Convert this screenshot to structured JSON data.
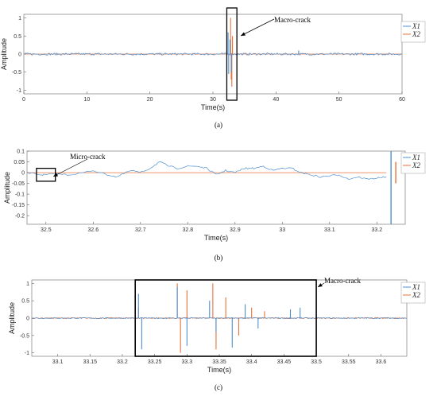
{
  "colors": {
    "x1": "#4d8fd0",
    "x2": "#e8703a",
    "axis": "#666666",
    "box": "#000000"
  },
  "chart_data": [
    {
      "type": "line",
      "panel_label": "(a)",
      "xlabel": "Time(s)",
      "ylabel": "Amplitude",
      "xlim": [
        0,
        60
      ],
      "ylim": [
        -1.1,
        1.1
      ],
      "xticks": [
        0,
        10,
        20,
        30,
        40,
        50,
        60
      ],
      "yticks": [
        -1,
        -0.5,
        0,
        0.5,
        1
      ],
      "legend": [
        "X1",
        "X2"
      ],
      "legend_position": "top-right",
      "series": [
        {
          "name": "X1",
          "noise": 0.03,
          "spikes": [
            [
              32.4,
              0.6
            ],
            [
              32.5,
              -0.55
            ],
            [
              32.7,
              0.4
            ],
            [
              32.9,
              -0.5
            ],
            [
              43.6,
              0.1
            ]
          ]
        },
        {
          "name": "X2",
          "noise": 0.0,
          "spikes": [
            [
              32.8,
              1.0
            ],
            [
              32.9,
              -0.7
            ],
            [
              33.0,
              -0.9
            ],
            [
              33.1,
              0.5
            ]
          ]
        }
      ],
      "annotations": [
        {
          "text": "Macro-crack",
          "xrange": [
            32.2,
            33.8
          ]
        }
      ]
    },
    {
      "type": "line",
      "panel_label": "(b)",
      "xlabel": "Time(s)",
      "ylabel": "Amplitude",
      "xlim": [
        32.46,
        33.26
      ],
      "ylim": [
        -0.24,
        0.1
      ],
      "xticks": [
        32.5,
        32.6,
        32.7,
        32.8,
        32.9,
        33,
        33.1,
        33.2
      ],
      "yticks": [
        -0.2,
        -0.15,
        -0.1,
        -0.05,
        0,
        0.05,
        0.1
      ],
      "legend": [
        "X1",
        "X2"
      ],
      "legend_position": "top-right",
      "series": [
        {
          "name": "X1",
          "x": [
            32.46,
            32.49,
            32.5,
            32.52,
            32.55,
            32.58,
            32.6,
            32.63,
            32.65,
            32.68,
            32.7,
            32.72,
            32.74,
            32.76,
            32.78,
            32.8,
            32.82,
            32.84,
            32.86,
            32.88,
            32.9,
            32.92,
            32.94,
            32.96,
            32.98,
            33.0,
            33.02,
            33.04,
            33.06,
            33.08,
            33.1,
            33.12,
            33.14,
            33.16,
            33.18,
            33.2,
            33.22
          ],
          "y": [
            0.0,
            -0.01,
            -0.01,
            -0.005,
            -0.01,
            0.0,
            0.01,
            -0.01,
            -0.02,
            0.01,
            0.0,
            0.02,
            0.05,
            0.03,
            0.02,
            0.03,
            0.03,
            0.02,
            -0.01,
            0.01,
            0.0,
            0.02,
            0.02,
            0.03,
            0.01,
            0.02,
            0.02,
            0.0,
            -0.01,
            -0.02,
            -0.015,
            -0.01,
            -0.03,
            -0.02,
            -0.03,
            -0.025,
            -0.02
          ]
        },
        {
          "name": "X2",
          "x": [
            32.46,
            33.22
          ],
          "y": [
            0.0,
            0.0
          ]
        }
      ],
      "spikes": [
        {
          "series": "X1",
          "x": 33.23,
          "max": 0.1,
          "min": -0.24
        },
        {
          "series": "X2",
          "x": 33.24,
          "max": 0.05,
          "min": -0.05
        }
      ],
      "annotations": [
        {
          "text": "Micro-crack",
          "xrange": [
            32.48,
            32.52
          ]
        }
      ]
    },
    {
      "type": "line",
      "panel_label": "(c)",
      "xlabel": "Time(s)",
      "ylabel": "Amplitude",
      "xlim": [
        33.06,
        33.64
      ],
      "ylim": [
        -1.1,
        1.1
      ],
      "xticks": [
        33.1,
        33.15,
        33.2,
        33.25,
        33.3,
        33.35,
        33.4,
        33.45,
        33.5,
        33.55,
        33.6
      ],
      "yticks": [
        -1,
        -0.5,
        0,
        0.5,
        1
      ],
      "legend": [
        "X1",
        "X2"
      ],
      "legend_position": "top-right",
      "series": [
        {
          "name": "X1",
          "spikes": [
            [
              33.225,
              0.7
            ],
            [
              33.23,
              -0.9
            ],
            [
              33.285,
              0.9
            ],
            [
              33.3,
              -0.8
            ],
            [
              33.335,
              0.5
            ],
            [
              33.345,
              -0.4
            ],
            [
              33.37,
              -0.85
            ],
            [
              33.39,
              0.4
            ],
            [
              33.41,
              -0.3
            ],
            [
              33.46,
              0.25
            ],
            [
              33.475,
              0.3
            ]
          ]
        },
        {
          "name": "X2",
          "spikes": [
            [
              33.225,
              0.3
            ],
            [
              33.285,
              1.0
            ],
            [
              33.29,
              -1.0
            ],
            [
              33.3,
              0.8
            ],
            [
              33.34,
              1.0
            ],
            [
              33.345,
              -0.9
            ],
            [
              33.36,
              0.6
            ],
            [
              33.38,
              -0.5
            ],
            [
              33.4,
              0.3
            ],
            [
              33.42,
              0.2
            ]
          ]
        }
      ],
      "annotations": [
        {
          "text": "Macro-crack",
          "xrange": [
            33.22,
            33.5
          ]
        }
      ]
    }
  ]
}
